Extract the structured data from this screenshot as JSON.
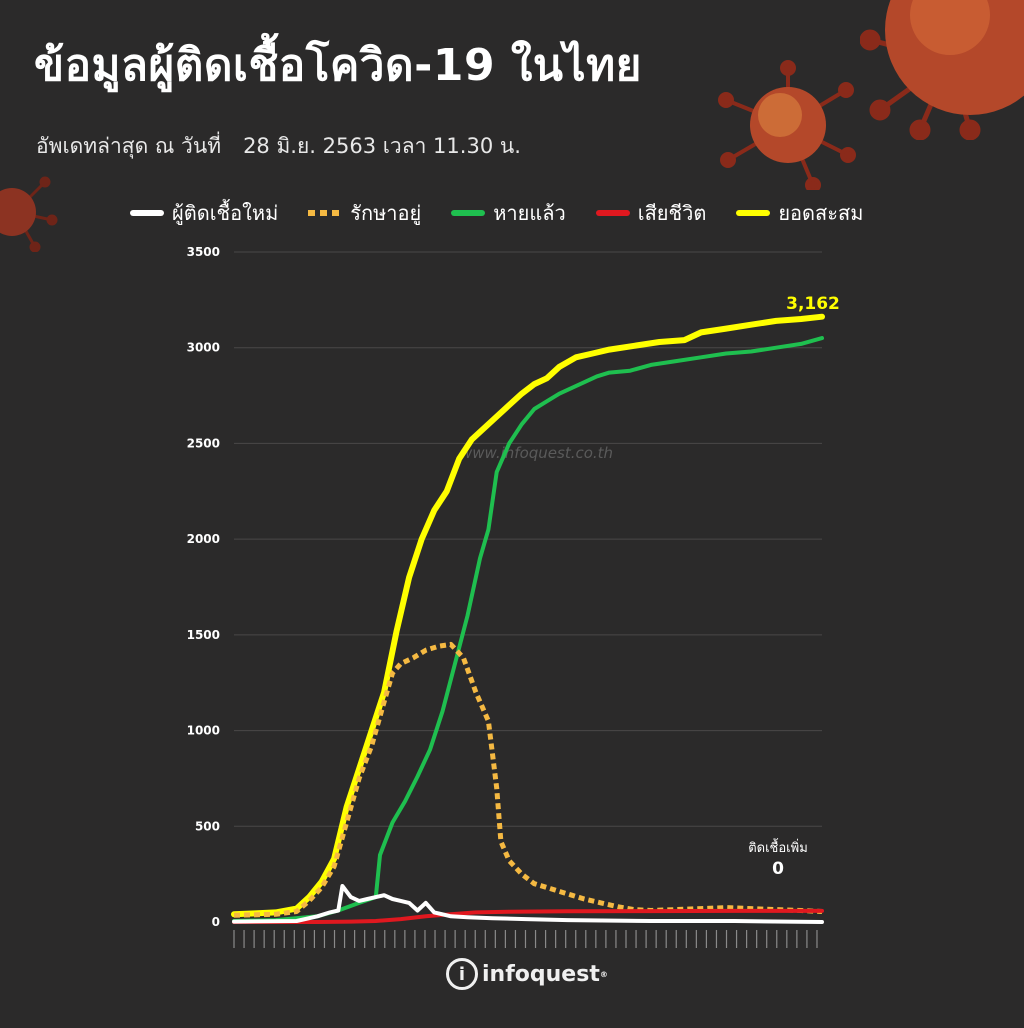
{
  "header": {
    "title": "ข้อมูลผู้ติดเชื้อโควิด-19 ในไทย",
    "updated_label": "อัพเดทล่าสุด ณ วันที่",
    "updated_date": "28 มิ.ย. 2563 เวลา 11.30 น."
  },
  "legend": [
    {
      "label": "ผู้ติดเชื้อใหม่",
      "color": "#ffffff",
      "style": "solid"
    },
    {
      "label": "รักษาอยู่",
      "color": "#f5b942",
      "style": "dashed"
    },
    {
      "label": "หายแล้ว",
      "color": "#1fbf4f",
      "style": "solid"
    },
    {
      "label": "เสียชีวิต",
      "color": "#e0181f",
      "style": "solid"
    },
    {
      "label": "ยอดสะสม",
      "color": "#ffff00",
      "style": "solid"
    }
  ],
  "watermark": "www.infoquest.co.th",
  "logo": {
    "text": "infoquest",
    "mark": "i",
    "reg": "®"
  },
  "chart_data": {
    "type": "line",
    "title": "",
    "xlabel": "",
    "ylabel": "",
    "ylim": [
      0,
      3500
    ],
    "yticks": [
      0,
      500,
      1000,
      1500,
      2000,
      2500,
      3000,
      3500
    ],
    "grid": "horizontal",
    "legend_position": "top",
    "x_count": 118,
    "last_label": "3,162",
    "annotation": {
      "label": "ติดเชื้อเพิ่ม",
      "value": "0"
    },
    "series": [
      {
        "name": "ยอดสะสม",
        "color": "#ffff00",
        "points": [
          [
            0,
            40
          ],
          [
            5,
            45
          ],
          [
            10,
            50
          ],
          [
            15,
            70
          ],
          [
            18,
            130
          ],
          [
            21,
            210
          ],
          [
            24,
            330
          ],
          [
            27,
            600
          ],
          [
            30,
            800
          ],
          [
            33,
            1000
          ],
          [
            36,
            1200
          ],
          [
            39,
            1520
          ],
          [
            42,
            1800
          ],
          [
            45,
            2000
          ],
          [
            48,
            2150
          ],
          [
            51,
            2250
          ],
          [
            54,
            2420
          ],
          [
            57,
            2520
          ],
          [
            60,
            2580
          ],
          [
            63,
            2640
          ],
          [
            66,
            2700
          ],
          [
            69,
            2760
          ],
          [
            72,
            2810
          ],
          [
            75,
            2840
          ],
          [
            78,
            2900
          ],
          [
            82,
            2950
          ],
          [
            86,
            2970
          ],
          [
            90,
            2990
          ],
          [
            96,
            3010
          ],
          [
            102,
            3030
          ],
          [
            108,
            3040
          ],
          [
            112,
            3080
          ],
          [
            118,
            3100
          ],
          [
            124,
            3120
          ],
          [
            130,
            3140
          ],
          [
            136,
            3150
          ],
          [
            141,
            3162
          ]
        ],
        "x_span": 141
      },
      {
        "name": "หายแล้ว",
        "color": "#1fbf4f",
        "points": [
          [
            0,
            5
          ],
          [
            10,
            10
          ],
          [
            20,
            30
          ],
          [
            25,
            60
          ],
          [
            30,
            100
          ],
          [
            34,
            130
          ],
          [
            35,
            350
          ],
          [
            38,
            520
          ],
          [
            41,
            630
          ],
          [
            44,
            760
          ],
          [
            47,
            900
          ],
          [
            50,
            1100
          ],
          [
            53,
            1350
          ],
          [
            56,
            1600
          ],
          [
            59,
            1900
          ],
          [
            61,
            2050
          ],
          [
            63,
            2350
          ],
          [
            66,
            2500
          ],
          [
            69,
            2600
          ],
          [
            72,
            2680
          ],
          [
            75,
            2720
          ],
          [
            78,
            2760
          ],
          [
            81,
            2790
          ],
          [
            84,
            2820
          ],
          [
            87,
            2850
          ],
          [
            90,
            2870
          ],
          [
            95,
            2880
          ],
          [
            100,
            2910
          ],
          [
            106,
            2930
          ],
          [
            112,
            2950
          ],
          [
            118,
            2970
          ],
          [
            124,
            2980
          ],
          [
            130,
            3000
          ],
          [
            136,
            3020
          ],
          [
            141,
            3050
          ]
        ],
        "x_span": 141
      },
      {
        "name": "รักษาอยู่",
        "color": "#f5b942",
        "points": [
          [
            0,
            35
          ],
          [
            10,
            40
          ],
          [
            15,
            55
          ],
          [
            18,
            110
          ],
          [
            21,
            180
          ],
          [
            24,
            290
          ],
          [
            27,
            520
          ],
          [
            30,
            750
          ],
          [
            33,
            920
          ],
          [
            36,
            1150
          ],
          [
            38,
            1300
          ],
          [
            40,
            1350
          ],
          [
            43,
            1380
          ],
          [
            46,
            1420
          ],
          [
            49,
            1440
          ],
          [
            52,
            1450
          ],
          [
            55,
            1380
          ],
          [
            58,
            1200
          ],
          [
            61,
            1050
          ],
          [
            63,
            700
          ],
          [
            64,
            420
          ],
          [
            66,
            320
          ],
          [
            69,
            250
          ],
          [
            72,
            200
          ],
          [
            75,
            180
          ],
          [
            78,
            160
          ],
          [
            81,
            140
          ],
          [
            84,
            120
          ],
          [
            88,
            100
          ],
          [
            92,
            80
          ],
          [
            96,
            65
          ],
          [
            100,
            60
          ],
          [
            106,
            65
          ],
          [
            112,
            70
          ],
          [
            118,
            75
          ],
          [
            124,
            70
          ],
          [
            130,
            65
          ],
          [
            136,
            60
          ],
          [
            141,
            55
          ]
        ],
        "x_span": 141
      },
      {
        "name": "เสียชีวิต",
        "color": "#e0181f",
        "points": [
          [
            0,
            0
          ],
          [
            20,
            0
          ],
          [
            28,
            2
          ],
          [
            34,
            5
          ],
          [
            40,
            15
          ],
          [
            46,
            30
          ],
          [
            52,
            40
          ],
          [
            58,
            50
          ],
          [
            66,
            54
          ],
          [
            80,
            56
          ],
          [
            100,
            57
          ],
          [
            120,
            58
          ],
          [
            141,
            58
          ]
        ],
        "x_span": 141
      },
      {
        "name": "ผู้ติดเชื้อใหม่",
        "color": "#ffffff",
        "points": [
          [
            0,
            2
          ],
          [
            15,
            5
          ],
          [
            20,
            30
          ],
          [
            23,
            50
          ],
          [
            25,
            60
          ],
          [
            26,
            188
          ],
          [
            28,
            130
          ],
          [
            30,
            110
          ],
          [
            32,
            120
          ],
          [
            34,
            130
          ],
          [
            36,
            140
          ],
          [
            38,
            120
          ],
          [
            40,
            110
          ],
          [
            42,
            100
          ],
          [
            44,
            60
          ],
          [
            46,
            100
          ],
          [
            48,
            50
          ],
          [
            50,
            40
          ],
          [
            52,
            30
          ],
          [
            56,
            25
          ],
          [
            62,
            20
          ],
          [
            70,
            15
          ],
          [
            80,
            10
          ],
          [
            100,
            5
          ],
          [
            120,
            5
          ],
          [
            141,
            0
          ]
        ],
        "x_span": 141
      }
    ]
  }
}
